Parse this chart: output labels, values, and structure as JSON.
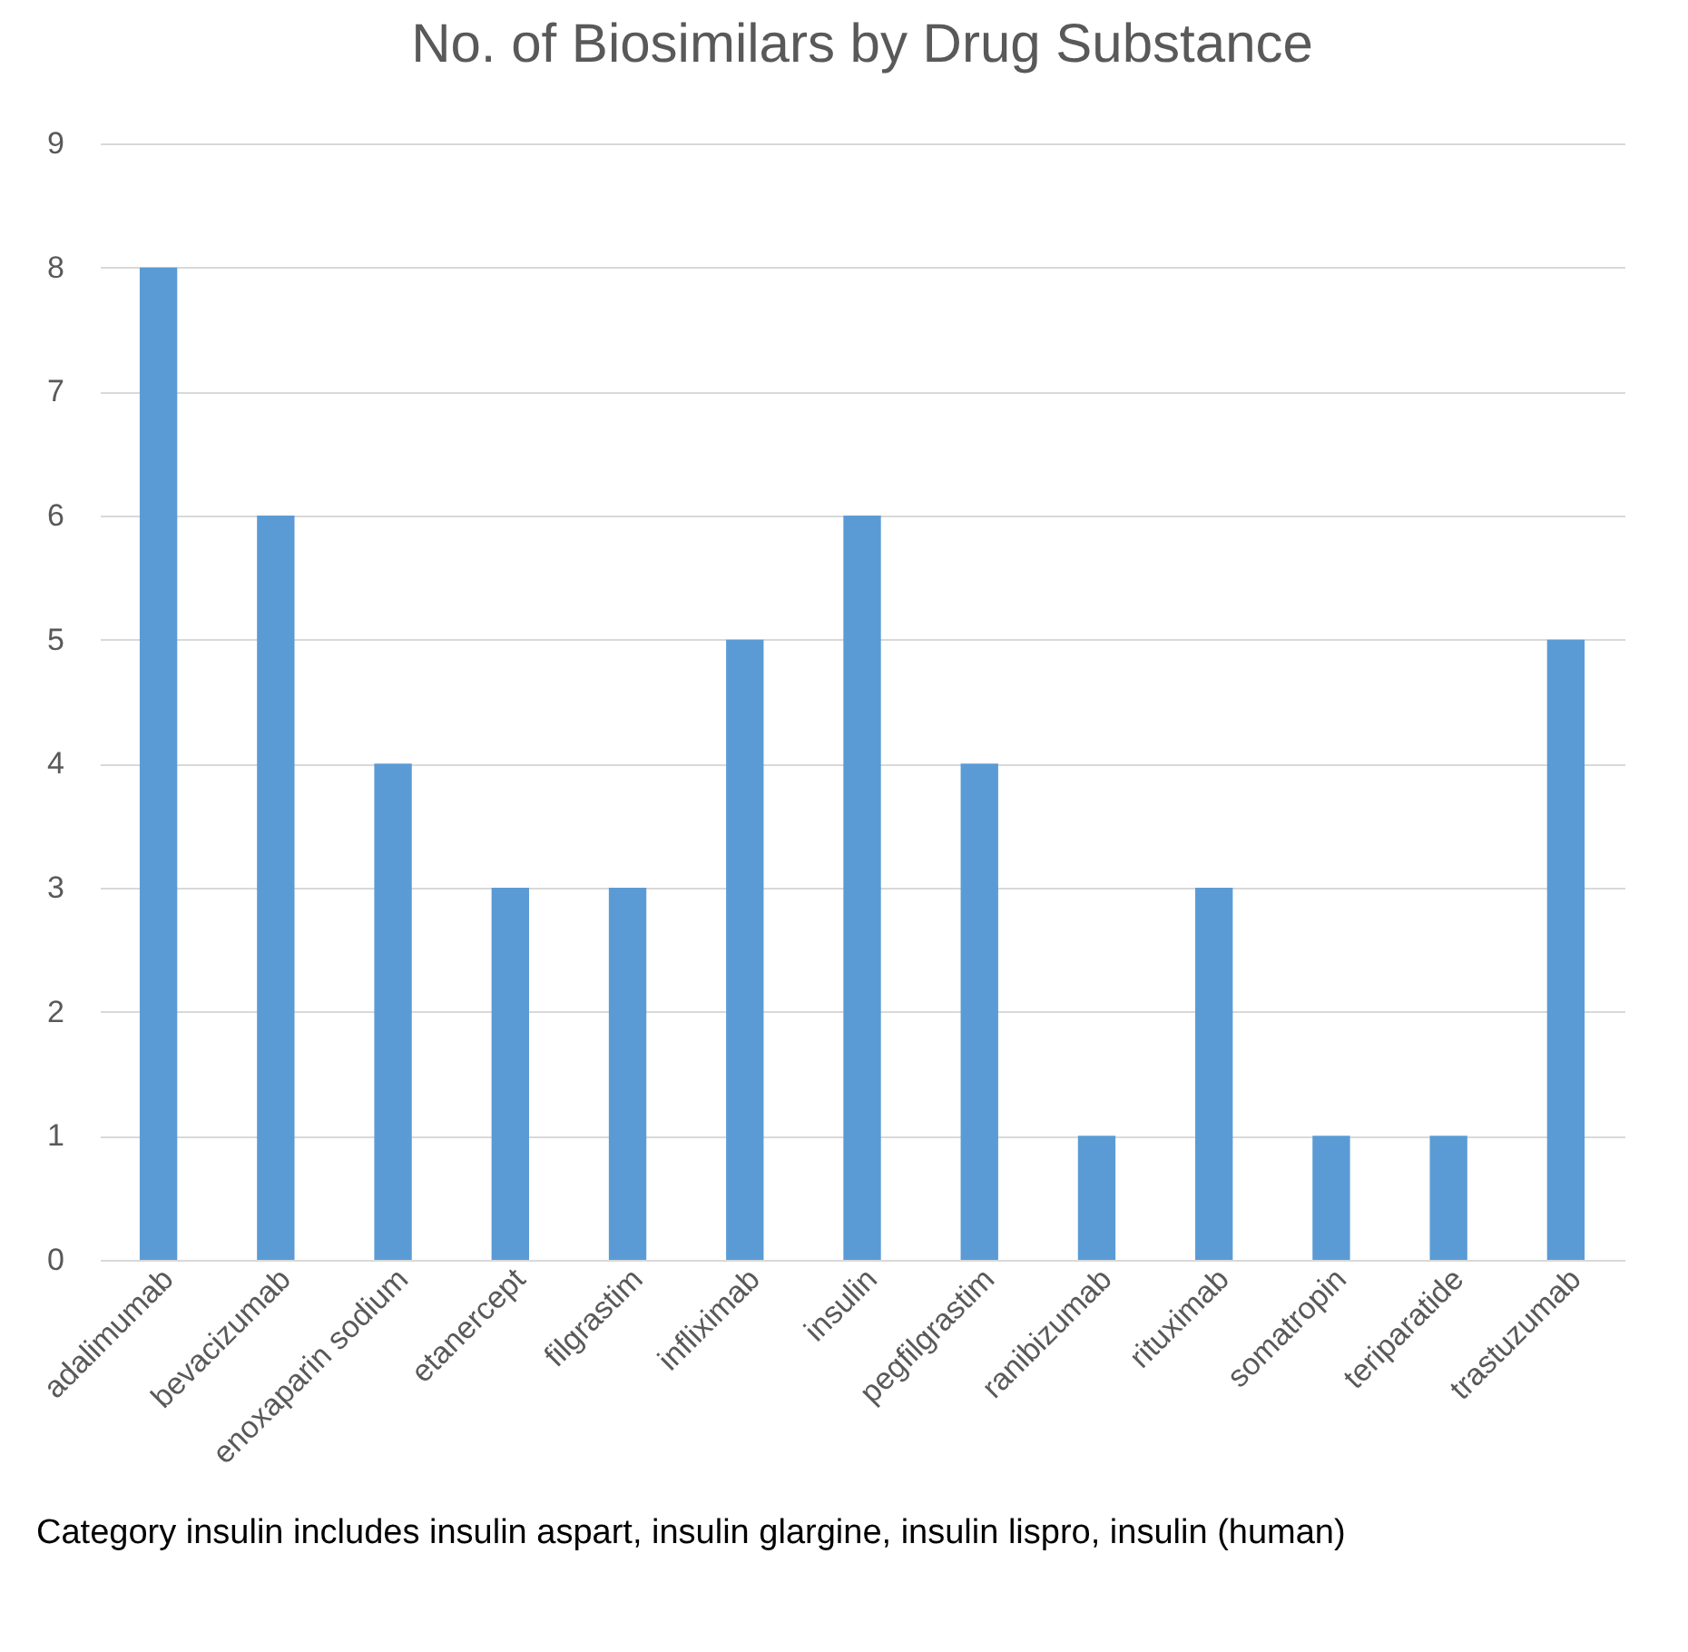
{
  "chart_data": {
    "type": "bar",
    "title": "No. of Biosimilars by Drug Substance",
    "categories": [
      "adalimumab",
      "bevacizumab",
      "enoxaparin sodium",
      "etanercept",
      "filgrastim",
      "infliximab",
      "insulin",
      "pegfilgrastim",
      "ranibizumab",
      "rituximab",
      "somatropin",
      "teriparatide",
      "trastuzumab"
    ],
    "values": [
      8,
      6,
      4,
      3,
      3,
      5,
      6,
      4,
      1,
      3,
      1,
      1,
      5
    ],
    "color": "#5b9bd5",
    "ylim": [
      0,
      9
    ],
    "yticks": [
      0,
      1,
      2,
      3,
      4,
      5,
      6,
      7,
      8,
      9
    ],
    "grid": "y",
    "annotations": [
      "Category insulin includes insulin aspart, insulin glargine, insulin lispro, insulin (human)"
    ]
  }
}
